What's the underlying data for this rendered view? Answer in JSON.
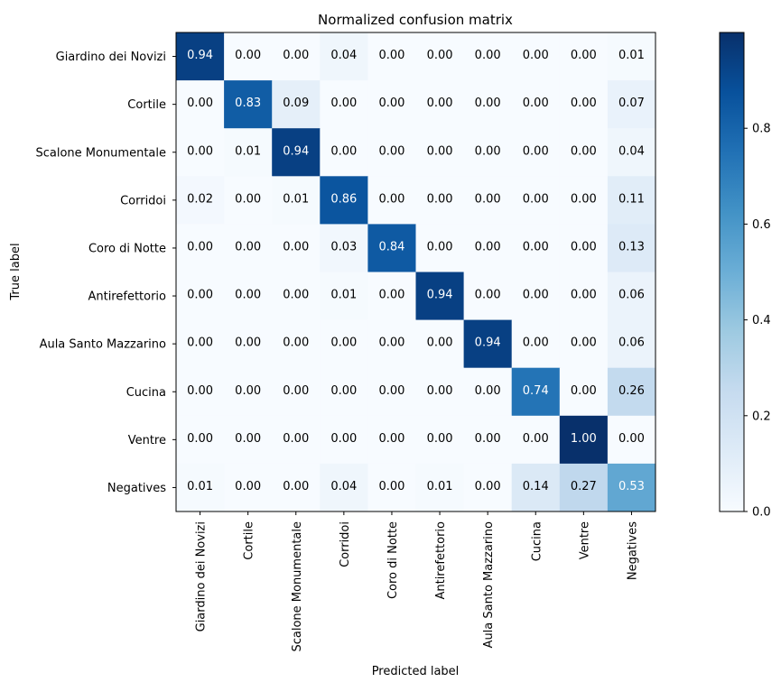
{
  "chart_data": {
    "type": "heatmap",
    "title": "Normalized confusion matrix",
    "xlabel": "Predicted label",
    "ylabel": "True label",
    "x_labels": [
      "Giardino dei Novizi",
      "Cortile",
      "Scalone Monumentale",
      "Corridoi",
      "Coro di Notte",
      "Antirefettorio",
      "Aula Santo Mazzarino",
      "Cucina",
      "Ventre",
      "Negatives"
    ],
    "y_labels": [
      "Giardino dei Novizi",
      "Cortile",
      "Scalone Monumentale",
      "Corridoi",
      "Coro di Notte",
      "Antirefettorio",
      "Aula Santo Mazzarino",
      "Cucina",
      "Ventre",
      "Negatives"
    ],
    "values": [
      [
        0.94,
        0.0,
        0.0,
        0.04,
        0.0,
        0.0,
        0.0,
        0.0,
        0.0,
        0.01
      ],
      [
        0.0,
        0.83,
        0.09,
        0.0,
        0.0,
        0.0,
        0.0,
        0.0,
        0.0,
        0.07
      ],
      [
        0.0,
        0.01,
        0.94,
        0.0,
        0.0,
        0.0,
        0.0,
        0.0,
        0.0,
        0.04
      ],
      [
        0.02,
        0.0,
        0.01,
        0.86,
        0.0,
        0.0,
        0.0,
        0.0,
        0.0,
        0.11
      ],
      [
        0.0,
        0.0,
        0.0,
        0.03,
        0.84,
        0.0,
        0.0,
        0.0,
        0.0,
        0.13
      ],
      [
        0.0,
        0.0,
        0.0,
        0.01,
        0.0,
        0.94,
        0.0,
        0.0,
        0.0,
        0.06
      ],
      [
        0.0,
        0.0,
        0.0,
        0.0,
        0.0,
        0.0,
        0.94,
        0.0,
        0.0,
        0.06
      ],
      [
        0.0,
        0.0,
        0.0,
        0.0,
        0.0,
        0.0,
        0.0,
        0.74,
        0.0,
        0.26
      ],
      [
        0.0,
        0.0,
        0.0,
        0.0,
        0.0,
        0.0,
        0.0,
        0.0,
        1.0,
        0.0
      ],
      [
        0.01,
        0.0,
        0.0,
        0.04,
        0.0,
        0.01,
        0.0,
        0.14,
        0.27,
        0.53
      ]
    ],
    "cell_labels": [
      [
        "0.94",
        "0.00",
        "0.00",
        "0.04",
        "0.00",
        "0.00",
        "0.00",
        "0.00",
        "0.00",
        "0.01"
      ],
      [
        "0.00",
        "0.83",
        "0.09",
        "0.00",
        "0.00",
        "0.00",
        "0.00",
        "0.00",
        "0.00",
        "0.07"
      ],
      [
        "0.00",
        "0.01",
        "0.94",
        "0.00",
        "0.00",
        "0.00",
        "0.00",
        "0.00",
        "0.00",
        "0.04"
      ],
      [
        "0.02",
        "0.00",
        "0.01",
        "0.86",
        "0.00",
        "0.00",
        "0.00",
        "0.00",
        "0.00",
        "0.11"
      ],
      [
        "0.00",
        "0.00",
        "0.00",
        "0.03",
        "0.84",
        "0.00",
        "0.00",
        "0.00",
        "0.00",
        "0.13"
      ],
      [
        "0.00",
        "0.00",
        "0.00",
        "0.01",
        "0.00",
        "0.94",
        "0.00",
        "0.00",
        "0.00",
        "0.06"
      ],
      [
        "0.00",
        "0.00",
        "0.00",
        "0.00",
        "0.00",
        "0.00",
        "0.94",
        "0.00",
        "0.00",
        "0.06"
      ],
      [
        "0.00",
        "0.00",
        "0.00",
        "0.00",
        "0.00",
        "0.00",
        "0.00",
        "0.74",
        "0.00",
        "0.26"
      ],
      [
        "0.00",
        "0.00",
        "0.00",
        "0.00",
        "0.00",
        "0.00",
        "0.00",
        "0.00",
        "1.00",
        "0.00"
      ],
      [
        "0.01",
        "0.00",
        "0.00",
        "0.04",
        "0.00",
        "0.01",
        "0.00",
        "0.14",
        "0.27",
        "0.53"
      ]
    ],
    "colorbar": {
      "colormap": "Blues",
      "range": [
        0,
        1
      ],
      "tick_values": [
        0.0,
        0.2,
        0.4,
        0.6,
        0.8
      ],
      "tick_labels": [
        "0.0",
        "0.2",
        "0.4",
        "0.6",
        "0.8"
      ]
    },
    "text_threshold": 0.5,
    "text_color_light": "#ffffff",
    "text_color_dark": "#000000",
    "grid": false
  }
}
